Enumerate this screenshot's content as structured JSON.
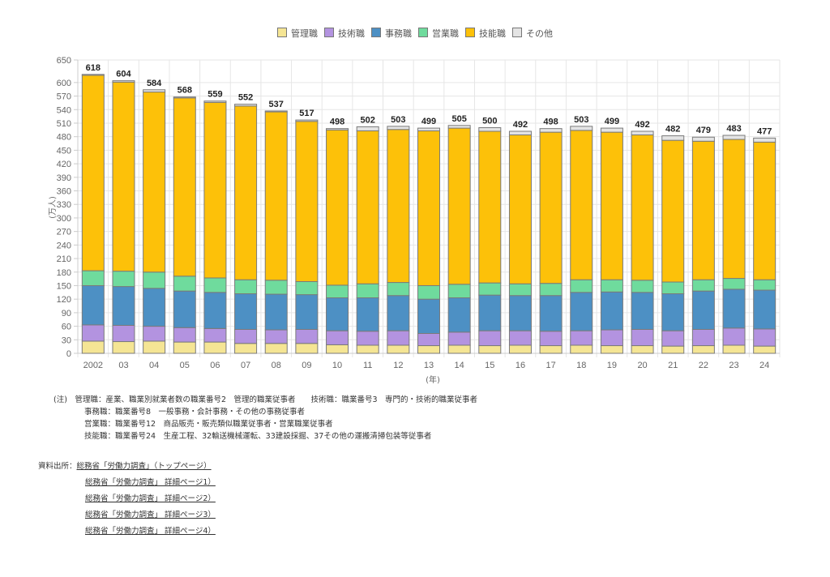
{
  "chart_data": {
    "type": "bar",
    "stacked": true,
    "title": "",
    "xlabel": "(年)",
    "ylabel": "(万人)",
    "ylim": [
      0,
      650
    ],
    "yticks": [
      0,
      30,
      60,
      90,
      120,
      150,
      180,
      210,
      240,
      270,
      300,
      330,
      360,
      390,
      420,
      450,
      480,
      510,
      540,
      570,
      600,
      650
    ],
    "grid": true,
    "legend_position": "top-center",
    "categories": [
      "2002",
      "03",
      "04",
      "05",
      "06",
      "07",
      "08",
      "09",
      "10",
      "11",
      "12",
      "13",
      "14",
      "15",
      "16",
      "17",
      "18",
      "19",
      "20",
      "21",
      "22",
      "23",
      "24"
    ],
    "totals": [
      618,
      604,
      584,
      568,
      559,
      552,
      537,
      517,
      498,
      502,
      503,
      499,
      505,
      500,
      492,
      498,
      503,
      499,
      492,
      482,
      479,
      483,
      477
    ],
    "series": [
      {
        "name": "管理職",
        "color": "#f5e594",
        "values": [
          27,
          26,
          27,
          25,
          25,
          22,
          22,
          22,
          19,
          18,
          18,
          17,
          18,
          17,
          18,
          17,
          18,
          17,
          17,
          16,
          17,
          18,
          16
        ]
      },
      {
        "name": "技術職",
        "color": "#b393e0",
        "values": [
          36,
          36,
          33,
          32,
          30,
          31,
          30,
          31,
          31,
          31,
          32,
          27,
          29,
          33,
          32,
          32,
          32,
          35,
          36,
          34,
          36,
          38,
          38
        ]
      },
      {
        "name": "事務職",
        "color": "#4d90c4",
        "values": [
          87,
          86,
          84,
          81,
          80,
          79,
          79,
          77,
          73,
          74,
          78,
          76,
          76,
          79,
          78,
          79,
          85,
          84,
          82,
          82,
          85,
          86,
          86
        ]
      },
      {
        "name": "営業職",
        "color": "#6fdb9d",
        "values": [
          33,
          34,
          36,
          33,
          32,
          31,
          31,
          29,
          28,
          31,
          29,
          30,
          30,
          27,
          26,
          27,
          28,
          27,
          27,
          26,
          25,
          24,
          23
        ]
      },
      {
        "name": "技能職",
        "color": "#fdc109",
        "values": [
          433,
          419,
          399,
          395,
          389,
          385,
          373,
          355,
          344,
          339,
          339,
          343,
          346,
          336,
          330,
          335,
          331,
          327,
          322,
          314,
          307,
          308,
          305
        ]
      },
      {
        "name": "その他",
        "color": "#e4e4e4",
        "values": [
          2,
          3,
          5,
          2,
          3,
          4,
          2,
          3,
          3,
          9,
          7,
          6,
          6,
          8,
          8,
          8,
          9,
          9,
          8,
          10,
          9,
          9,
          9
        ]
      }
    ]
  },
  "notes": {
    "prefix": "(注)",
    "lines": [
      "管理職：産業、職業別就業者数の職業番号2　管理的職業従事者　　技術職：職業番号3　専門的・技術的職業従事者",
      "事務職：職業番号8　一般事務・会計事務・その他の事務従事者",
      "営業職：職業番号12　商品販売・販売類似職業従事者・営業職業従事者",
      "技能職：職業番号24　生産工程、32輸送機械運転、33建設採掘、37その他の運搬清掃包装等従事者"
    ]
  },
  "sources": {
    "label": "資料出所：",
    "links": [
      "総務省「労働力調査」（トップページ）",
      "総務省「労働力調査」 詳細ページ1）",
      "総務省「労働力調査」 詳細ページ2）",
      "総務省「労働力調査」 詳細ページ3）",
      "総務省「労働力調査」 詳細ページ4）"
    ]
  }
}
